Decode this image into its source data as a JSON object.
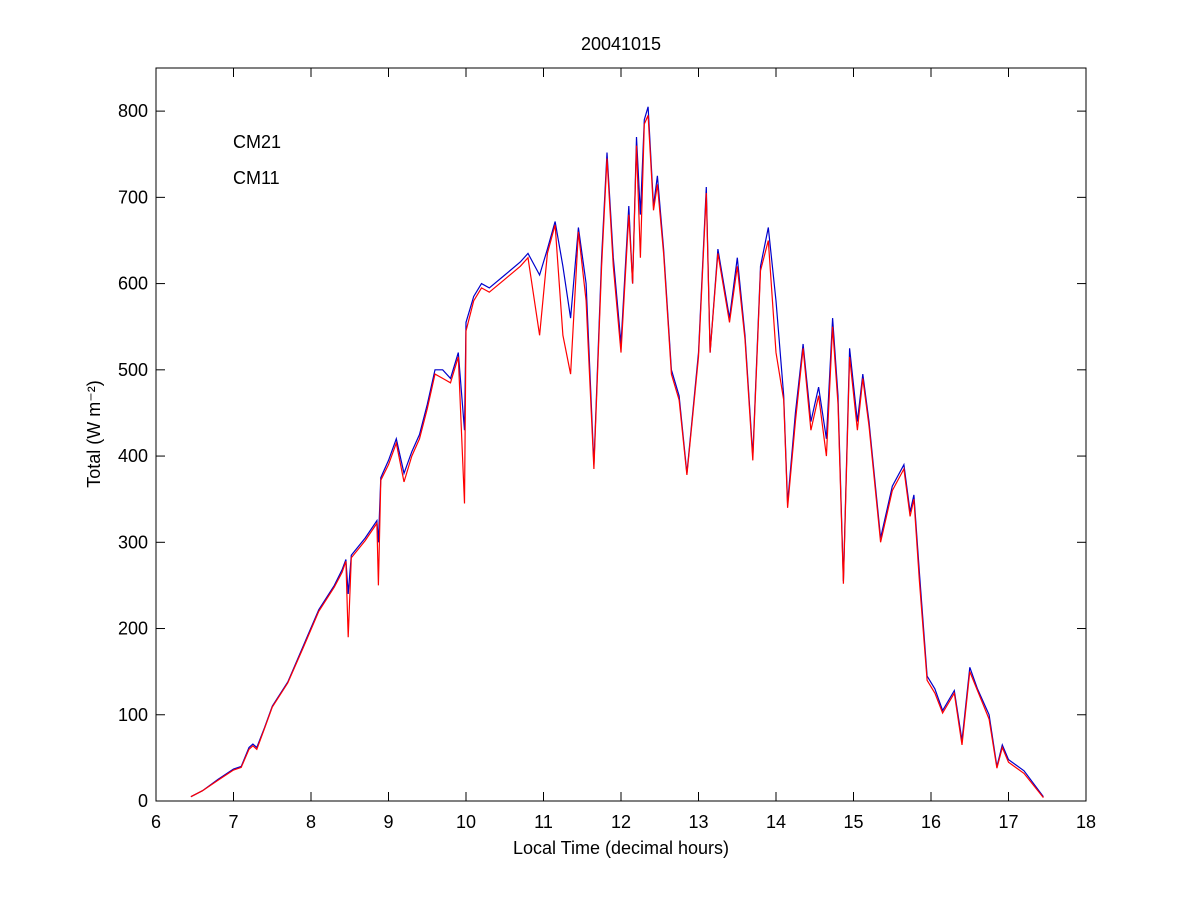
{
  "chart_data": {
    "type": "line",
    "title": "20041015",
    "xlabel": "Local Time (decimal hours)",
    "ylabel": "Total (W m⁻²)",
    "x": [
      6.45,
      6.6,
      6.8,
      7.0,
      7.1,
      7.2,
      7.25,
      7.3,
      7.4,
      7.5,
      7.7,
      7.9,
      8.1,
      8.3,
      8.4,
      8.45,
      8.48,
      8.52,
      8.7,
      8.85,
      8.87,
      8.9,
      9.0,
      9.1,
      9.2,
      9.3,
      9.4,
      9.5,
      9.6,
      9.7,
      9.8,
      9.9,
      9.98,
      10.0,
      10.1,
      10.2,
      10.3,
      10.5,
      10.7,
      10.8,
      10.95,
      11.05,
      11.15,
      11.25,
      11.35,
      11.45,
      11.55,
      11.65,
      11.75,
      11.82,
      11.9,
      12.0,
      12.1,
      12.15,
      12.2,
      12.25,
      12.3,
      12.35,
      12.42,
      12.47,
      12.55,
      12.65,
      12.75,
      12.85,
      13.0,
      13.1,
      13.15,
      13.25,
      13.4,
      13.5,
      13.6,
      13.7,
      13.8,
      13.9,
      14.0,
      14.1,
      14.15,
      14.25,
      14.35,
      14.45,
      14.55,
      14.65,
      14.73,
      14.8,
      14.87,
      14.95,
      15.05,
      15.12,
      15.2,
      15.35,
      15.5,
      15.65,
      15.73,
      15.78,
      15.85,
      15.95,
      16.05,
      16.15,
      16.3,
      16.4,
      16.5,
      16.6,
      16.75,
      16.85,
      16.92,
      17.0,
      17.2,
      17.45
    ],
    "series": [
      {
        "name": "CM21",
        "color": "#0000cc",
        "values": [
          5,
          12,
          25,
          37,
          40,
          62,
          66,
          62,
          85,
          110,
          138,
          180,
          222,
          250,
          268,
          280,
          240,
          285,
          305,
          325,
          300,
          375,
          395,
          420,
          380,
          405,
          425,
          460,
          500,
          500,
          490,
          520,
          430,
          555,
          585,
          600,
          595,
          610,
          625,
          635,
          610,
          640,
          672,
          620,
          560,
          665,
          600,
          390,
          630,
          752,
          630,
          530,
          690,
          600,
          770,
          680,
          790,
          805,
          690,
          725,
          640,
          500,
          470,
          380,
          520,
          712,
          520,
          640,
          560,
          630,
          540,
          400,
          620,
          665,
          580,
          470,
          345,
          450,
          530,
          440,
          480,
          420,
          560,
          470,
          255,
          525,
          440,
          495,
          440,
          305,
          365,
          390,
          335,
          355,
          265,
          145,
          130,
          105,
          128,
          70,
          155,
          130,
          100,
          40,
          65,
          48,
          35,
          5
        ]
      },
      {
        "name": "CM11",
        "color": "#ff0000",
        "values": [
          5,
          12,
          24,
          36,
          39,
          60,
          64,
          60,
          84,
          109,
          137,
          178,
          220,
          248,
          265,
          278,
          190,
          282,
          302,
          322,
          250,
          372,
          390,
          415,
          370,
          400,
          420,
          455,
          495,
          490,
          485,
          515,
          345,
          545,
          580,
          595,
          590,
          605,
          620,
          630,
          540,
          635,
          668,
          540,
          495,
          660,
          580,
          385,
          620,
          745,
          620,
          520,
          680,
          600,
          760,
          630,
          785,
          795,
          685,
          715,
          635,
          495,
          465,
          378,
          515,
          705,
          520,
          635,
          555,
          620,
          535,
          395,
          615,
          650,
          520,
          465,
          340,
          440,
          525,
          430,
          470,
          400,
          550,
          460,
          252,
          515,
          430,
          490,
          435,
          300,
          360,
          385,
          330,
          350,
          255,
          140,
          125,
          102,
          125,
          65,
          150,
          128,
          95,
          38,
          62,
          45,
          32,
          4
        ]
      }
    ],
    "xlim": [
      6,
      18
    ],
    "xticks": [
      6,
      7,
      8,
      9,
      10,
      11,
      12,
      13,
      14,
      15,
      16,
      17,
      18
    ],
    "ylim": [
      0,
      850
    ],
    "yticks": [
      0,
      100,
      200,
      300,
      400,
      500,
      600,
      700,
      800
    ],
    "grid": false
  }
}
